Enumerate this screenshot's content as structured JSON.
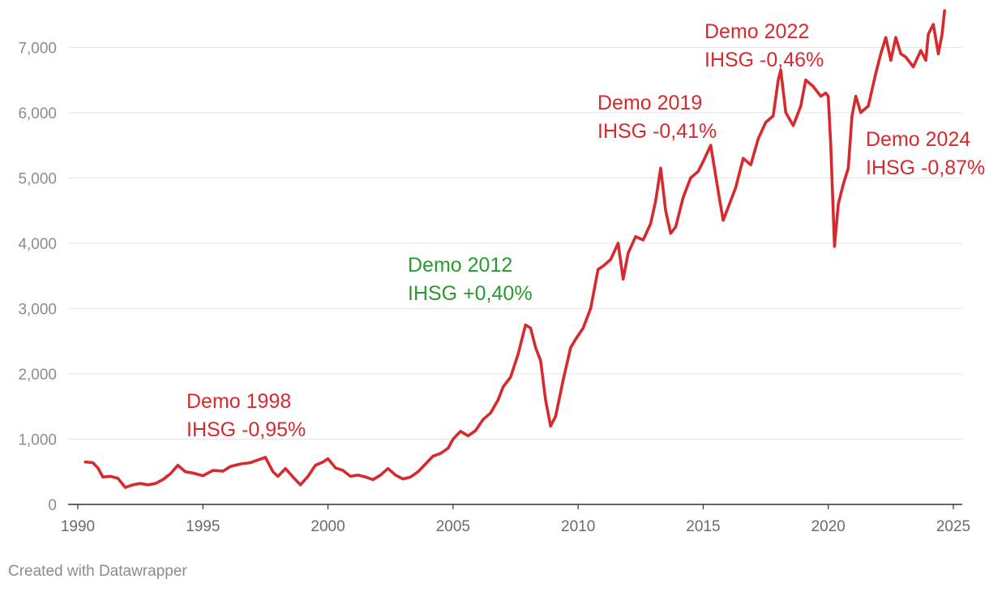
{
  "chart_data": {
    "type": "line",
    "title": "",
    "xlabel": "",
    "ylabel": "",
    "xlim": [
      1990,
      2025
    ],
    "ylim": [
      0,
      7600
    ],
    "x_ticks": [
      "1990",
      "1995",
      "2000",
      "2005",
      "2010",
      "2015",
      "2020",
      "2025"
    ],
    "y_ticks": [
      "0",
      "1,000",
      "2,000",
      "3,000",
      "4,000",
      "5,000",
      "6,000",
      "7,000"
    ],
    "grid": true,
    "legend": "none",
    "colors": {
      "line": "#d62a2e",
      "negative_annotation": "#d62a2e",
      "positive_annotation": "#2a9a2f",
      "axis_text": "#8c8c8c"
    },
    "series": [
      {
        "values": [
          [
            1990.3,
            650
          ],
          [
            1990.6,
            640
          ],
          [
            1990.8,
            560
          ],
          [
            1991.0,
            420
          ],
          [
            1991.3,
            430
          ],
          [
            1991.6,
            400
          ],
          [
            1991.9,
            260
          ],
          [
            1992.2,
            300
          ],
          [
            1992.5,
            320
          ],
          [
            1992.8,
            300
          ],
          [
            1993.1,
            320
          ],
          [
            1993.4,
            380
          ],
          [
            1993.7,
            470
          ],
          [
            1994.0,
            600
          ],
          [
            1994.3,
            500
          ],
          [
            1994.6,
            480
          ],
          [
            1995.0,
            440
          ],
          [
            1995.4,
            520
          ],
          [
            1995.8,
            510
          ],
          [
            1996.1,
            580
          ],
          [
            1996.5,
            620
          ],
          [
            1996.9,
            640
          ],
          [
            1997.2,
            680
          ],
          [
            1997.5,
            720
          ],
          [
            1997.8,
            500
          ],
          [
            1998.0,
            430
          ],
          [
            1998.3,
            550
          ],
          [
            1998.6,
            420
          ],
          [
            1998.9,
            300
          ],
          [
            1999.2,
            430
          ],
          [
            1999.5,
            600
          ],
          [
            1999.8,
            650
          ],
          [
            2000.0,
            700
          ],
          [
            2000.3,
            560
          ],
          [
            2000.6,
            520
          ],
          [
            2000.9,
            430
          ],
          [
            2001.2,
            450
          ],
          [
            2001.5,
            420
          ],
          [
            2001.8,
            380
          ],
          [
            2002.1,
            450
          ],
          [
            2002.4,
            550
          ],
          [
            2002.7,
            450
          ],
          [
            2003.0,
            390
          ],
          [
            2003.3,
            420
          ],
          [
            2003.6,
            500
          ],
          [
            2003.9,
            620
          ],
          [
            2004.2,
            740
          ],
          [
            2004.5,
            780
          ],
          [
            2004.8,
            860
          ],
          [
            2005.0,
            1000
          ],
          [
            2005.3,
            1120
          ],
          [
            2005.6,
            1050
          ],
          [
            2005.9,
            1130
          ],
          [
            2006.2,
            1300
          ],
          [
            2006.5,
            1400
          ],
          [
            2006.8,
            1600
          ],
          [
            2007.0,
            1800
          ],
          [
            2007.3,
            1950
          ],
          [
            2007.6,
            2300
          ],
          [
            2007.9,
            2750
          ],
          [
            2008.1,
            2700
          ],
          [
            2008.3,
            2400
          ],
          [
            2008.5,
            2200
          ],
          [
            2008.7,
            1600
          ],
          [
            2008.9,
            1200
          ],
          [
            2009.1,
            1350
          ],
          [
            2009.4,
            1900
          ],
          [
            2009.7,
            2400
          ],
          [
            2009.9,
            2530
          ],
          [
            2010.2,
            2700
          ],
          [
            2010.5,
            3000
          ],
          [
            2010.8,
            3600
          ],
          [
            2011.0,
            3650
          ],
          [
            2011.3,
            3750
          ],
          [
            2011.6,
            4000
          ],
          [
            2011.8,
            3450
          ],
          [
            2012.0,
            3850
          ],
          [
            2012.3,
            4100
          ],
          [
            2012.6,
            4050
          ],
          [
            2012.9,
            4300
          ],
          [
            2013.1,
            4650
          ],
          [
            2013.3,
            5150
          ],
          [
            2013.5,
            4500
          ],
          [
            2013.7,
            4150
          ],
          [
            2013.9,
            4250
          ],
          [
            2014.2,
            4700
          ],
          [
            2014.5,
            5000
          ],
          [
            2014.8,
            5100
          ],
          [
            2015.0,
            5250
          ],
          [
            2015.3,
            5500
          ],
          [
            2015.6,
            4800
          ],
          [
            2015.8,
            4350
          ],
          [
            2016.0,
            4550
          ],
          [
            2016.3,
            4850
          ],
          [
            2016.6,
            5300
          ],
          [
            2016.9,
            5200
          ],
          [
            2017.2,
            5600
          ],
          [
            2017.5,
            5850
          ],
          [
            2017.8,
            5950
          ],
          [
            2018.0,
            6500
          ],
          [
            2018.1,
            6650
          ],
          [
            2018.3,
            6000
          ],
          [
            2018.6,
            5800
          ],
          [
            2018.9,
            6100
          ],
          [
            2019.1,
            6500
          ],
          [
            2019.4,
            6400
          ],
          [
            2019.7,
            6250
          ],
          [
            2019.9,
            6300
          ],
          [
            2020.0,
            6250
          ],
          [
            2020.1,
            5500
          ],
          [
            2020.25,
            3950
          ],
          [
            2020.4,
            4600
          ],
          [
            2020.6,
            4900
          ],
          [
            2020.8,
            5150
          ],
          [
            2020.95,
            5950
          ],
          [
            2021.1,
            6250
          ],
          [
            2021.3,
            6000
          ],
          [
            2021.6,
            6100
          ],
          [
            2021.9,
            6600
          ],
          [
            2022.1,
            6900
          ],
          [
            2022.3,
            7150
          ],
          [
            2022.5,
            6800
          ],
          [
            2022.7,
            7150
          ],
          [
            2022.9,
            6900
          ],
          [
            2023.1,
            6850
          ],
          [
            2023.4,
            6700
          ],
          [
            2023.7,
            6950
          ],
          [
            2023.9,
            6800
          ],
          [
            2024.0,
            7200
          ],
          [
            2024.2,
            7350
          ],
          [
            2024.4,
            6900
          ],
          [
            2024.55,
            7200
          ],
          [
            2024.65,
            7560
          ]
        ]
      }
    ],
    "annotations": [
      {
        "line1": "Demo 1998",
        "line2": "IHSG -0,95%",
        "sentiment": "negative"
      },
      {
        "line1": "Demo 2012",
        "line2": "IHSG +0,40%",
        "sentiment": "positive"
      },
      {
        "line1": "Demo 2019",
        "line2": "IHSG -0,41%",
        "sentiment": "negative"
      },
      {
        "line1": "Demo 2022",
        "line2": "IHSG -0,46%",
        "sentiment": "negative"
      },
      {
        "line1": "Demo 2024",
        "line2": "IHSG -0,87%",
        "sentiment": "negative"
      }
    ]
  },
  "credit": "Created with Datawrapper"
}
